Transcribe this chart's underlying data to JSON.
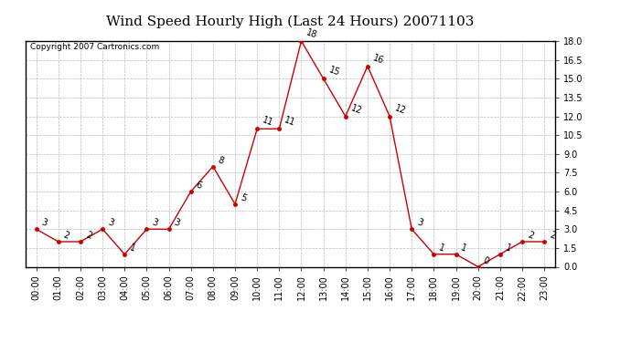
{
  "title": "Wind Speed Hourly High (Last 24 Hours) 20071103",
  "copyright": "Copyright 2007 Cartronics.com",
  "hours": [
    "00:00",
    "01:00",
    "02:00",
    "03:00",
    "04:00",
    "05:00",
    "06:00",
    "07:00",
    "08:00",
    "09:00",
    "10:00",
    "11:00",
    "12:00",
    "13:00",
    "14:00",
    "15:00",
    "16:00",
    "17:00",
    "18:00",
    "19:00",
    "20:00",
    "21:00",
    "22:00",
    "23:00"
  ],
  "values": [
    3,
    2,
    2,
    3,
    1,
    3,
    3,
    6,
    8,
    5,
    11,
    11,
    18,
    15,
    12,
    16,
    12,
    3,
    1,
    1,
    0,
    1,
    2,
    2
  ],
  "ylim": [
    0.0,
    18.0
  ],
  "yticks": [
    0.0,
    1.5,
    3.0,
    4.5,
    6.0,
    7.5,
    9.0,
    10.5,
    12.0,
    13.5,
    15.0,
    16.5,
    18.0
  ],
  "line_color": "#cc0000",
  "marker_color": "#cc0000",
  "bg_color": "#ffffff",
  "grid_color": "#bbbbbb",
  "title_fontsize": 11,
  "copyright_fontsize": 6.5,
  "label_fontsize": 7,
  "annot_fontsize": 7
}
